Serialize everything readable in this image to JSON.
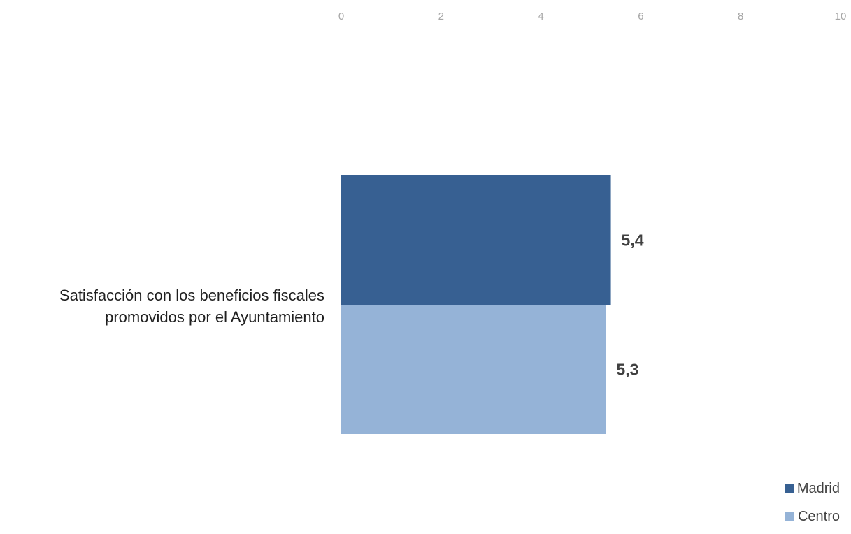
{
  "chart_data": {
    "type": "bar",
    "orientation": "horizontal",
    "categories": [
      "Satisfacción con los beneficios fiscales promovidos por el Ayuntamiento"
    ],
    "category_lines": [
      [
        "Satisfacción con los beneficios fiscales",
        "promovidos por el Ayuntamiento"
      ]
    ],
    "series": [
      {
        "name": "Madrid",
        "values": [
          5.4
        ],
        "labels": [
          "5,4"
        ],
        "color": "#376092"
      },
      {
        "name": "Centro",
        "values": [
          5.3
        ],
        "labels": [
          "5,3"
        ],
        "color": "#95b3d7"
      }
    ],
    "xlim": [
      0,
      10
    ],
    "xticks": [
      0,
      2,
      4,
      6,
      8,
      10
    ],
    "xtick_labels": [
      "0",
      "2",
      "4",
      "6",
      "8",
      "10"
    ],
    "x_axis_position": "top",
    "grid": false,
    "legend_position": "bottom-right",
    "title": "",
    "xlabel": "",
    "ylabel": ""
  }
}
